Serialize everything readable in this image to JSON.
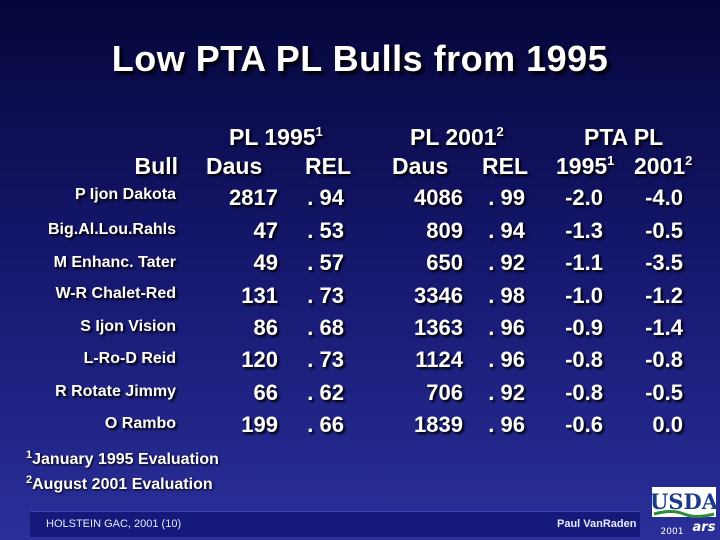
{
  "title": "Low PTA PL Bulls from 1995",
  "headers": {
    "pl1995": "PL 1995",
    "pl1995_sup": "1",
    "pl2001": "PL 2001",
    "pl2001_sup": "2",
    "pta_pl": "PTA PL",
    "bull": "Bull",
    "daus1": "Daus",
    "rel1": "REL",
    "daus2": "Daus",
    "rel2": "REL",
    "y1995": "1995",
    "y1995_sup": "1",
    "y2001": "2001",
    "y2001_sup": "2"
  },
  "rows": [
    {
      "bull": "P Ijon Dakota",
      "daus1995": "2817",
      "rel1995": ". 94",
      "daus2001": "4086",
      "rel2001": ". 99",
      "pta1995": "-2.0",
      "pta2001": "-4.0"
    },
    {
      "bull": "Big.Al.Lou.Rahls",
      "daus1995": "47",
      "rel1995": ". 53",
      "daus2001": "809",
      "rel2001": ". 94",
      "pta1995": "-1.3",
      "pta2001": "-0.5"
    },
    {
      "bull": "M Enhanc. Tater",
      "daus1995": "49",
      "rel1995": ". 57",
      "daus2001": "650",
      "rel2001": ". 92",
      "pta1995": "-1.1",
      "pta2001": "-3.5"
    },
    {
      "bull": "W-R Chalet-Red",
      "daus1995": "131",
      "rel1995": ". 73",
      "daus2001": "3346",
      "rel2001": ". 98",
      "pta1995": "-1.0",
      "pta2001": "-1.2"
    },
    {
      "bull": "S Ijon Vision",
      "daus1995": "86",
      "rel1995": ". 68",
      "daus2001": "1363",
      "rel2001": ". 96",
      "pta1995": "-0.9",
      "pta2001": "-1.4"
    },
    {
      "bull": "L-Ro-D Reid",
      "daus1995": "120",
      "rel1995": ". 73",
      "daus2001": "1124",
      "rel2001": ". 96",
      "pta1995": "-0.8",
      "pta2001": "-0.8"
    },
    {
      "bull": "R Rotate Jimmy",
      "daus1995": "66",
      "rel1995": ". 62",
      "daus2001": "706",
      "rel2001": ". 92",
      "pta1995": "-0.8",
      "pta2001": "-0.5"
    },
    {
      "bull": "O Rambo",
      "daus1995": "199",
      "rel1995": ". 66",
      "daus2001": "1839",
      "rel2001": ". 96",
      "pta1995": "-0.6",
      "pta2001": "0.0"
    }
  ],
  "footnotes": [
    {
      "mark": "1",
      "text": "January 1995 Evaluation"
    },
    {
      "mark": "2",
      "text": "August 2001 Evaluation"
    }
  ],
  "footer": {
    "left": "HOLSTEIN GAC, 2001 (10)",
    "right": "Paul VanRaden"
  },
  "logo": {
    "name": "usda-logo",
    "text": "USDA",
    "sub": "2001",
    "ars": "ars"
  }
}
